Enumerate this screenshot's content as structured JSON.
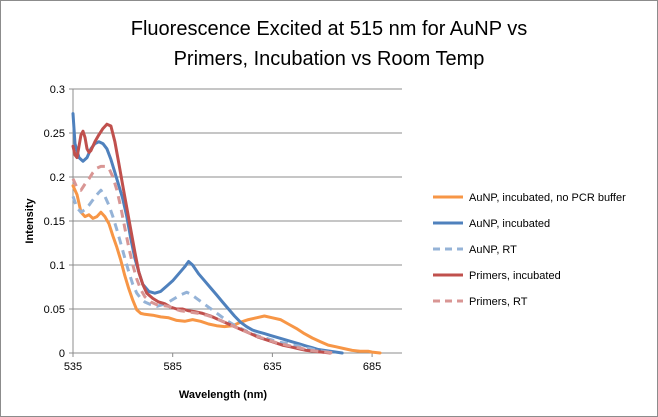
{
  "chart_data": {
    "type": "line",
    "title_lines": [
      "Fluorescence Excited at 515 nm for AuNP vs",
      "Primers, Incubation vs Room Temp"
    ],
    "xlabel": "Wavelength (nm)",
    "ylabel": "Intensity",
    "xlim": [
      535,
      700
    ],
    "ylim": [
      0,
      0.3
    ],
    "x_ticks": [
      535,
      585,
      635,
      685
    ],
    "x_tick_labels": [
      "535",
      "585",
      "635",
      "685"
    ],
    "y_ticks": [
      0,
      0.05,
      0.1,
      0.15,
      0.2,
      0.25,
      0.3
    ],
    "y_tick_labels": [
      "0",
      "0.05",
      "0.1",
      "0.15",
      "0.2",
      "0.25",
      "0.3"
    ],
    "grid": "horizontal",
    "legend_position": "right",
    "series": [
      {
        "name": "AuNP, incubated, no PCR buffer",
        "color": "#F79646",
        "dash": "solid",
        "points": [
          [
            535,
            0.19
          ],
          [
            537,
            0.18
          ],
          [
            539,
            0.16
          ],
          [
            541,
            0.155
          ],
          [
            543,
            0.157
          ],
          [
            545,
            0.153
          ],
          [
            547,
            0.155
          ],
          [
            549,
            0.16
          ],
          [
            551,
            0.155
          ],
          [
            553,
            0.147
          ],
          [
            555,
            0.133
          ],
          [
            557,
            0.12
          ],
          [
            559,
            0.105
          ],
          [
            561,
            0.088
          ],
          [
            563,
            0.073
          ],
          [
            565,
            0.06
          ],
          [
            567,
            0.049
          ],
          [
            569,
            0.045
          ],
          [
            571,
            0.044
          ],
          [
            575,
            0.043
          ],
          [
            579,
            0.041
          ],
          [
            583,
            0.04
          ],
          [
            587,
            0.037
          ],
          [
            591,
            0.036
          ],
          [
            595,
            0.038
          ],
          [
            599,
            0.036
          ],
          [
            603,
            0.033
          ],
          [
            607,
            0.031
          ],
          [
            611,
            0.03
          ],
          [
            615,
            0.031
          ],
          [
            619,
            0.035
          ],
          [
            623,
            0.038
          ],
          [
            627,
            0.04
          ],
          [
            631,
            0.042
          ],
          [
            635,
            0.04
          ],
          [
            639,
            0.038
          ],
          [
            643,
            0.033
          ],
          [
            647,
            0.028
          ],
          [
            651,
            0.022
          ],
          [
            655,
            0.017
          ],
          [
            659,
            0.013
          ],
          [
            663,
            0.009
          ],
          [
            667,
            0.007
          ],
          [
            671,
            0.005
          ],
          [
            675,
            0.003
          ],
          [
            679,
            0.002
          ],
          [
            683,
            0.002
          ],
          [
            685,
            0.001
          ],
          [
            689,
            0
          ]
        ]
      },
      {
        "name": "AuNP, incubated",
        "color": "#4F81BD",
        "dash": "solid",
        "points": [
          [
            535,
            0.272
          ],
          [
            536,
            0.238
          ],
          [
            538,
            0.222
          ],
          [
            540,
            0.218
          ],
          [
            542,
            0.222
          ],
          [
            544,
            0.232
          ],
          [
            546,
            0.238
          ],
          [
            548,
            0.24
          ],
          [
            550,
            0.238
          ],
          [
            552,
            0.232
          ],
          [
            554,
            0.22
          ],
          [
            556,
            0.205
          ],
          [
            558,
            0.19
          ],
          [
            560,
            0.175
          ],
          [
            562,
            0.155
          ],
          [
            564,
            0.13
          ],
          [
            566,
            0.108
          ],
          [
            568,
            0.092
          ],
          [
            570,
            0.078
          ],
          [
            573,
            0.07
          ],
          [
            576,
            0.068
          ],
          [
            579,
            0.07
          ],
          [
            582,
            0.076
          ],
          [
            585,
            0.082
          ],
          [
            588,
            0.09
          ],
          [
            591,
            0.098
          ],
          [
            593,
            0.104
          ],
          [
            595,
            0.1
          ],
          [
            598,
            0.09
          ],
          [
            601,
            0.082
          ],
          [
            604,
            0.074
          ],
          [
            607,
            0.066
          ],
          [
            610,
            0.058
          ],
          [
            613,
            0.05
          ],
          [
            616,
            0.042
          ],
          [
            619,
            0.035
          ],
          [
            622,
            0.03
          ],
          [
            625,
            0.026
          ],
          [
            628,
            0.024
          ],
          [
            631,
            0.022
          ],
          [
            634,
            0.02
          ],
          [
            637,
            0.018
          ],
          [
            640,
            0.016
          ],
          [
            643,
            0.014
          ],
          [
            646,
            0.012
          ],
          [
            649,
            0.01
          ],
          [
            652,
            0.008
          ],
          [
            655,
            0.006
          ],
          [
            658,
            0.004
          ],
          [
            661,
            0.003
          ],
          [
            664,
            0.002
          ],
          [
            667,
            0.001
          ],
          [
            670,
            0
          ]
        ]
      },
      {
        "name": "AuNP, RT",
        "color": "#95B3D7",
        "dash": "dashed",
        "points": [
          [
            535,
            0.178
          ],
          [
            537,
            0.165
          ],
          [
            539,
            0.16
          ],
          [
            541,
            0.163
          ],
          [
            543,
            0.168
          ],
          [
            545,
            0.174
          ],
          [
            547,
            0.18
          ],
          [
            549,
            0.185
          ],
          [
            551,
            0.178
          ],
          [
            553,
            0.168
          ],
          [
            555,
            0.155
          ],
          [
            557,
            0.14
          ],
          [
            559,
            0.124
          ],
          [
            561,
            0.108
          ],
          [
            563,
            0.092
          ],
          [
            565,
            0.078
          ],
          [
            567,
            0.068
          ],
          [
            569,
            0.062
          ],
          [
            571,
            0.058
          ],
          [
            574,
            0.055
          ],
          [
            577,
            0.053
          ],
          [
            580,
            0.055
          ],
          [
            583,
            0.058
          ],
          [
            586,
            0.062
          ],
          [
            589,
            0.066
          ],
          [
            592,
            0.069
          ],
          [
            594,
            0.067
          ],
          [
            597,
            0.062
          ],
          [
            600,
            0.057
          ],
          [
            603,
            0.052
          ],
          [
            606,
            0.047
          ],
          [
            609,
            0.042
          ],
          [
            612,
            0.037
          ],
          [
            615,
            0.033
          ],
          [
            618,
            0.029
          ],
          [
            621,
            0.026
          ],
          [
            624,
            0.023
          ],
          [
            627,
            0.02
          ],
          [
            630,
            0.018
          ],
          [
            633,
            0.016
          ],
          [
            636,
            0.014
          ],
          [
            639,
            0.012
          ],
          [
            642,
            0.011
          ],
          [
            645,
            0.009
          ],
          [
            648,
            0.008
          ],
          [
            651,
            0.006
          ],
          [
            654,
            0.005
          ],
          [
            657,
            0.003
          ],
          [
            660,
            0.002
          ],
          [
            663,
            0.001
          ],
          [
            666,
            0
          ]
        ]
      },
      {
        "name": "Primers, incubated",
        "color": "#C0504D",
        "dash": "solid",
        "points": [
          [
            535,
            0.235
          ],
          [
            536,
            0.225
          ],
          [
            537,
            0.222
          ],
          [
            538,
            0.235
          ],
          [
            539,
            0.248
          ],
          [
            540,
            0.252
          ],
          [
            541,
            0.245
          ],
          [
            542,
            0.232
          ],
          [
            543,
            0.228
          ],
          [
            544,
            0.23
          ],
          [
            546,
            0.24
          ],
          [
            548,
            0.248
          ],
          [
            550,
            0.255
          ],
          [
            552,
            0.26
          ],
          [
            554,
            0.258
          ],
          [
            556,
            0.24
          ],
          [
            558,
            0.215
          ],
          [
            560,
            0.19
          ],
          [
            562,
            0.165
          ],
          [
            564,
            0.14
          ],
          [
            566,
            0.115
          ],
          [
            568,
            0.092
          ],
          [
            570,
            0.078
          ],
          [
            572,
            0.068
          ],
          [
            575,
            0.062
          ],
          [
            578,
            0.058
          ],
          [
            581,
            0.056
          ],
          [
            584,
            0.052
          ],
          [
            587,
            0.05
          ],
          [
            590,
            0.05
          ],
          [
            593,
            0.048
          ],
          [
            596,
            0.047
          ],
          [
            600,
            0.045
          ],
          [
            604,
            0.042
          ],
          [
            608,
            0.038
          ],
          [
            612,
            0.034
          ],
          [
            616,
            0.03
          ],
          [
            620,
            0.026
          ],
          [
            624,
            0.022
          ],
          [
            628,
            0.018
          ],
          [
            632,
            0.015
          ],
          [
            636,
            0.012
          ],
          [
            640,
            0.009
          ],
          [
            644,
            0.007
          ],
          [
            648,
            0.005
          ],
          [
            652,
            0.003
          ],
          [
            656,
            0.002
          ],
          [
            660,
            0.001
          ],
          [
            664,
            0
          ]
        ]
      },
      {
        "name": "Primers, RT",
        "color": "#D99694",
        "dash": "dashed",
        "points": [
          [
            535,
            0.198
          ],
          [
            537,
            0.188
          ],
          [
            539,
            0.185
          ],
          [
            541,
            0.192
          ],
          [
            543,
            0.198
          ],
          [
            545,
            0.205
          ],
          [
            547,
            0.21
          ],
          [
            549,
            0.212
          ],
          [
            551,
            0.212
          ],
          [
            553,
            0.21
          ],
          [
            555,
            0.2
          ],
          [
            557,
            0.185
          ],
          [
            559,
            0.165
          ],
          [
            561,
            0.142
          ],
          [
            563,
            0.12
          ],
          [
            565,
            0.1
          ],
          [
            567,
            0.084
          ],
          [
            569,
            0.072
          ],
          [
            571,
            0.064
          ],
          [
            574,
            0.058
          ],
          [
            577,
            0.055
          ],
          [
            580,
            0.054
          ],
          [
            583,
            0.053
          ],
          [
            586,
            0.05
          ],
          [
            589,
            0.048
          ],
          [
            592,
            0.047
          ],
          [
            595,
            0.046
          ],
          [
            598,
            0.045
          ],
          [
            602,
            0.043
          ],
          [
            606,
            0.04
          ],
          [
            610,
            0.036
          ],
          [
            614,
            0.032
          ],
          [
            618,
            0.028
          ],
          [
            622,
            0.024
          ],
          [
            626,
            0.02
          ],
          [
            630,
            0.017
          ],
          [
            634,
            0.014
          ],
          [
            638,
            0.011
          ],
          [
            642,
            0.009
          ],
          [
            646,
            0.007
          ],
          [
            650,
            0.005
          ],
          [
            654,
            0.003
          ],
          [
            658,
            0.002
          ],
          [
            662,
            0.001
          ],
          [
            666,
            0
          ]
        ]
      }
    ]
  }
}
